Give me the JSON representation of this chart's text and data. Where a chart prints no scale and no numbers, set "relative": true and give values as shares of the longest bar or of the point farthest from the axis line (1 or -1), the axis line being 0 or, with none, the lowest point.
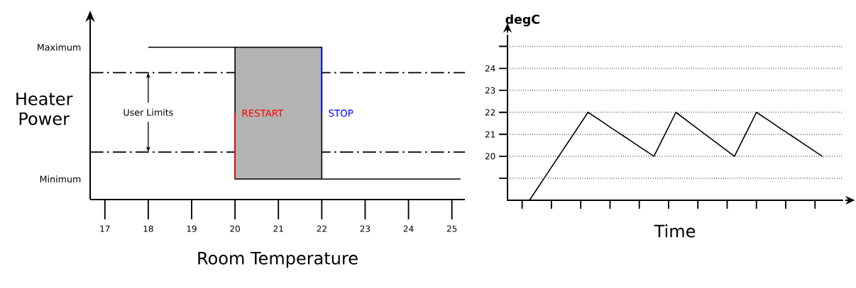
{
  "chart_data": [
    {
      "type": "line",
      "xlabel": "Room Temperature",
      "ylabel": "Heater Power",
      "xlim": [
        16.66,
        25.3
      ],
      "relative": true,
      "tick_labels": "x",
      "xticks": [
        17,
        18,
        19,
        20,
        21,
        22,
        23,
        24,
        25
      ],
      "series": [
        {
          "color": "#000000",
          "x": [
            18,
            20
          ],
          "values": [
            1,
            1
          ]
        },
        {
          "color": "#000000",
          "x": [
            22,
            25.2
          ],
          "values": [
            0.135,
            0.135
          ]
        },
        {
          "name": "RESTART",
          "color": "#ff0000",
          "x": [
            20,
            20
          ],
          "values": [
            0.135,
            0.567
          ]
        },
        {
          "name": "STOP",
          "color": "#0000ff",
          "x": [
            22,
            22
          ],
          "values": [
            1,
            0.567
          ]
        }
      ],
      "ref_lines": [
        {
          "axis": "y",
          "value": 0.833,
          "line_style": "dashdot"
        },
        {
          "axis": "y",
          "value": 0.312,
          "line_style": "dashdot"
        }
      ],
      "bands": [
        {
          "axis": "x",
          "from": 20,
          "to": 22,
          "color": "#b3b3b3"
        }
      ],
      "annotations": [
        "User Limits",
        "Maximum",
        "Minimum"
      ]
    },
    {
      "type": "line",
      "xlabel": "Time",
      "ylabel": "degC",
      "ylim": [
        18,
        25.5
      ],
      "tick_labels": "y",
      "categories": [
        null,
        null,
        null,
        null,
        null,
        null,
        null,
        null,
        null,
        null,
        null,
        null,
        null,
        null,
        null,
        null,
        null,
        null,
        null,
        null,
        null,
        null,
        null,
        null,
        null,
        null,
        null,
        null,
        null,
        null,
        null,
        null,
        null,
        null,
        null,
        null,
        null,
        null,
        null,
        null,
        null,
        null
      ],
      "yticks": [
        {
          "value": 19,
          "label": null
        },
        20,
        21,
        22,
        23,
        24,
        {
          "value": 25,
          "label": null
        }
      ],
      "grid": "y",
      "series": [
        {
          "color": "#000000",
          "values": [
            null,
            18,
            18.5,
            19,
            19.5,
            20,
            20.5,
            21,
            21.5,
            22,
            21.78,
            21.56,
            21.33,
            21.11,
            20.89,
            20.67,
            20.44,
            20.22,
            20,
            20.67,
            21.33,
            22,
            21.75,
            21.5,
            21.25,
            21,
            20.75,
            20.5,
            20.25,
            20,
            20.67,
            21.33,
            22,
            21.78,
            21.56,
            21.33,
            21.11,
            20.89,
            20.67,
            20.44,
            20.22,
            20
          ]
        }
      ]
    }
  ]
}
